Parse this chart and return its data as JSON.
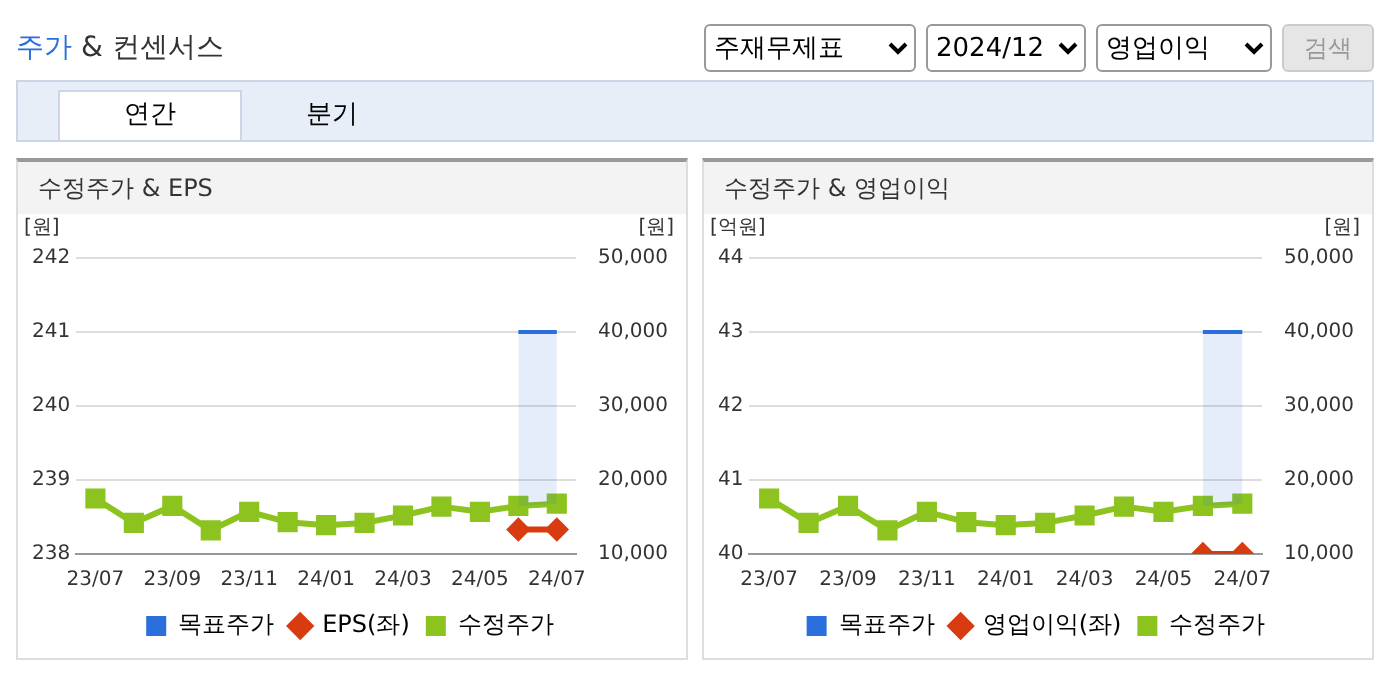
{
  "chart_data": [
    {
      "type": "other",
      "title": "주가 & 컨센서스",
      "annotations": [
        "주재무제표",
        "2024/12",
        "영업이익",
        "검색",
        "연간",
        "분기"
      ]
    },
    {
      "type": "line",
      "title": "수정주가 & EPS",
      "ylabel": "[원]",
      "y2label": "[원]",
      "categories": [
        "23/07",
        null,
        "23/09",
        null,
        "23/11",
        null,
        "24/01",
        null,
        "24/03",
        null,
        "24/05",
        null,
        "24/07"
      ],
      "series": [
        {
          "name": "목표주가",
          "color": "#2a6fdb",
          "axis": "y2",
          "marker": "none",
          "values": [
            null,
            null,
            null,
            null,
            null,
            null,
            null,
            null,
            null,
            null,
            null,
            40000,
            40000
          ],
          "lower": [
            null,
            null,
            null,
            null,
            null,
            null,
            null,
            null,
            null,
            null,
            null,
            16500,
            16800
          ],
          "upper": [
            null,
            null,
            null,
            null,
            null,
            null,
            null,
            null,
            null,
            null,
            null,
            40000,
            40000
          ]
        },
        {
          "name": "EPS(좌)",
          "color": "#d83b0f",
          "marker": "diamond",
          "values": [
            null,
            null,
            null,
            null,
            null,
            null,
            null,
            null,
            null,
            null,
            null,
            238.33,
            238.33
          ]
        },
        {
          "name": "수정주가",
          "color": "#8cc31f",
          "axis": "y2",
          "marker": "square",
          "values": [
            17500,
            14200,
            16500,
            13200,
            15700,
            14300,
            13900,
            14200,
            15200,
            16400,
            15700,
            16500,
            16800
          ]
        }
      ],
      "ylim": [
        238,
        242
      ],
      "yticks": [
        238,
        239,
        240,
        241,
        242
      ],
      "y2lim": [
        10000,
        50000
      ],
      "y2ticks": [
        {
          "value": 10000,
          "label": "10,000"
        },
        {
          "value": 20000,
          "label": "20,000"
        },
        {
          "value": 30000,
          "label": "30,000"
        },
        {
          "value": 40000,
          "label": "40,000"
        },
        {
          "value": 50000,
          "label": "50,000"
        }
      ],
      "grid": "y",
      "legend": "bottom"
    },
    {
      "type": "line",
      "title": "수정주가 & 영업이익",
      "ylabel": "[억원]",
      "y2label": "[원]",
      "categories": [
        "23/07",
        null,
        "23/09",
        null,
        "23/11",
        null,
        "24/01",
        null,
        "24/03",
        null,
        "24/05",
        null,
        "24/07"
      ],
      "series": [
        {
          "name": "목표주가",
          "color": "#2a6fdb",
          "axis": "y2",
          "marker": "none",
          "values": [
            null,
            null,
            null,
            null,
            null,
            null,
            null,
            null,
            null,
            null,
            null,
            40000,
            40000
          ],
          "lower": [
            null,
            null,
            null,
            null,
            null,
            null,
            null,
            null,
            null,
            null,
            null,
            16500,
            16800
          ],
          "upper": [
            null,
            null,
            null,
            null,
            null,
            null,
            null,
            null,
            null,
            null,
            null,
            40000,
            40000
          ]
        },
        {
          "name": "영업이익(좌)",
          "color": "#d83b0f",
          "marker": "diamond",
          "values": [
            null,
            null,
            null,
            null,
            null,
            null,
            null,
            null,
            null,
            null,
            null,
            40,
            40
          ]
        },
        {
          "name": "수정주가",
          "color": "#8cc31f",
          "axis": "y2",
          "marker": "square",
          "values": [
            17500,
            14200,
            16500,
            13200,
            15700,
            14300,
            13900,
            14200,
            15200,
            16400,
            15700,
            16500,
            16800
          ]
        }
      ],
      "ylim": [
        40,
        44
      ],
      "yticks": [
        40,
        41,
        42,
        43,
        44
      ],
      "y2lim": [
        10000,
        50000
      ],
      "y2ticks": [
        {
          "value": 10000,
          "label": "10,000"
        },
        {
          "value": 20000,
          "label": "20,000"
        },
        {
          "value": 30000,
          "label": "30,000"
        },
        {
          "value": 40000,
          "label": "40,000"
        },
        {
          "value": 50000,
          "label": "50,000"
        }
      ],
      "grid": "y",
      "legend": "bottom"
    }
  ]
}
